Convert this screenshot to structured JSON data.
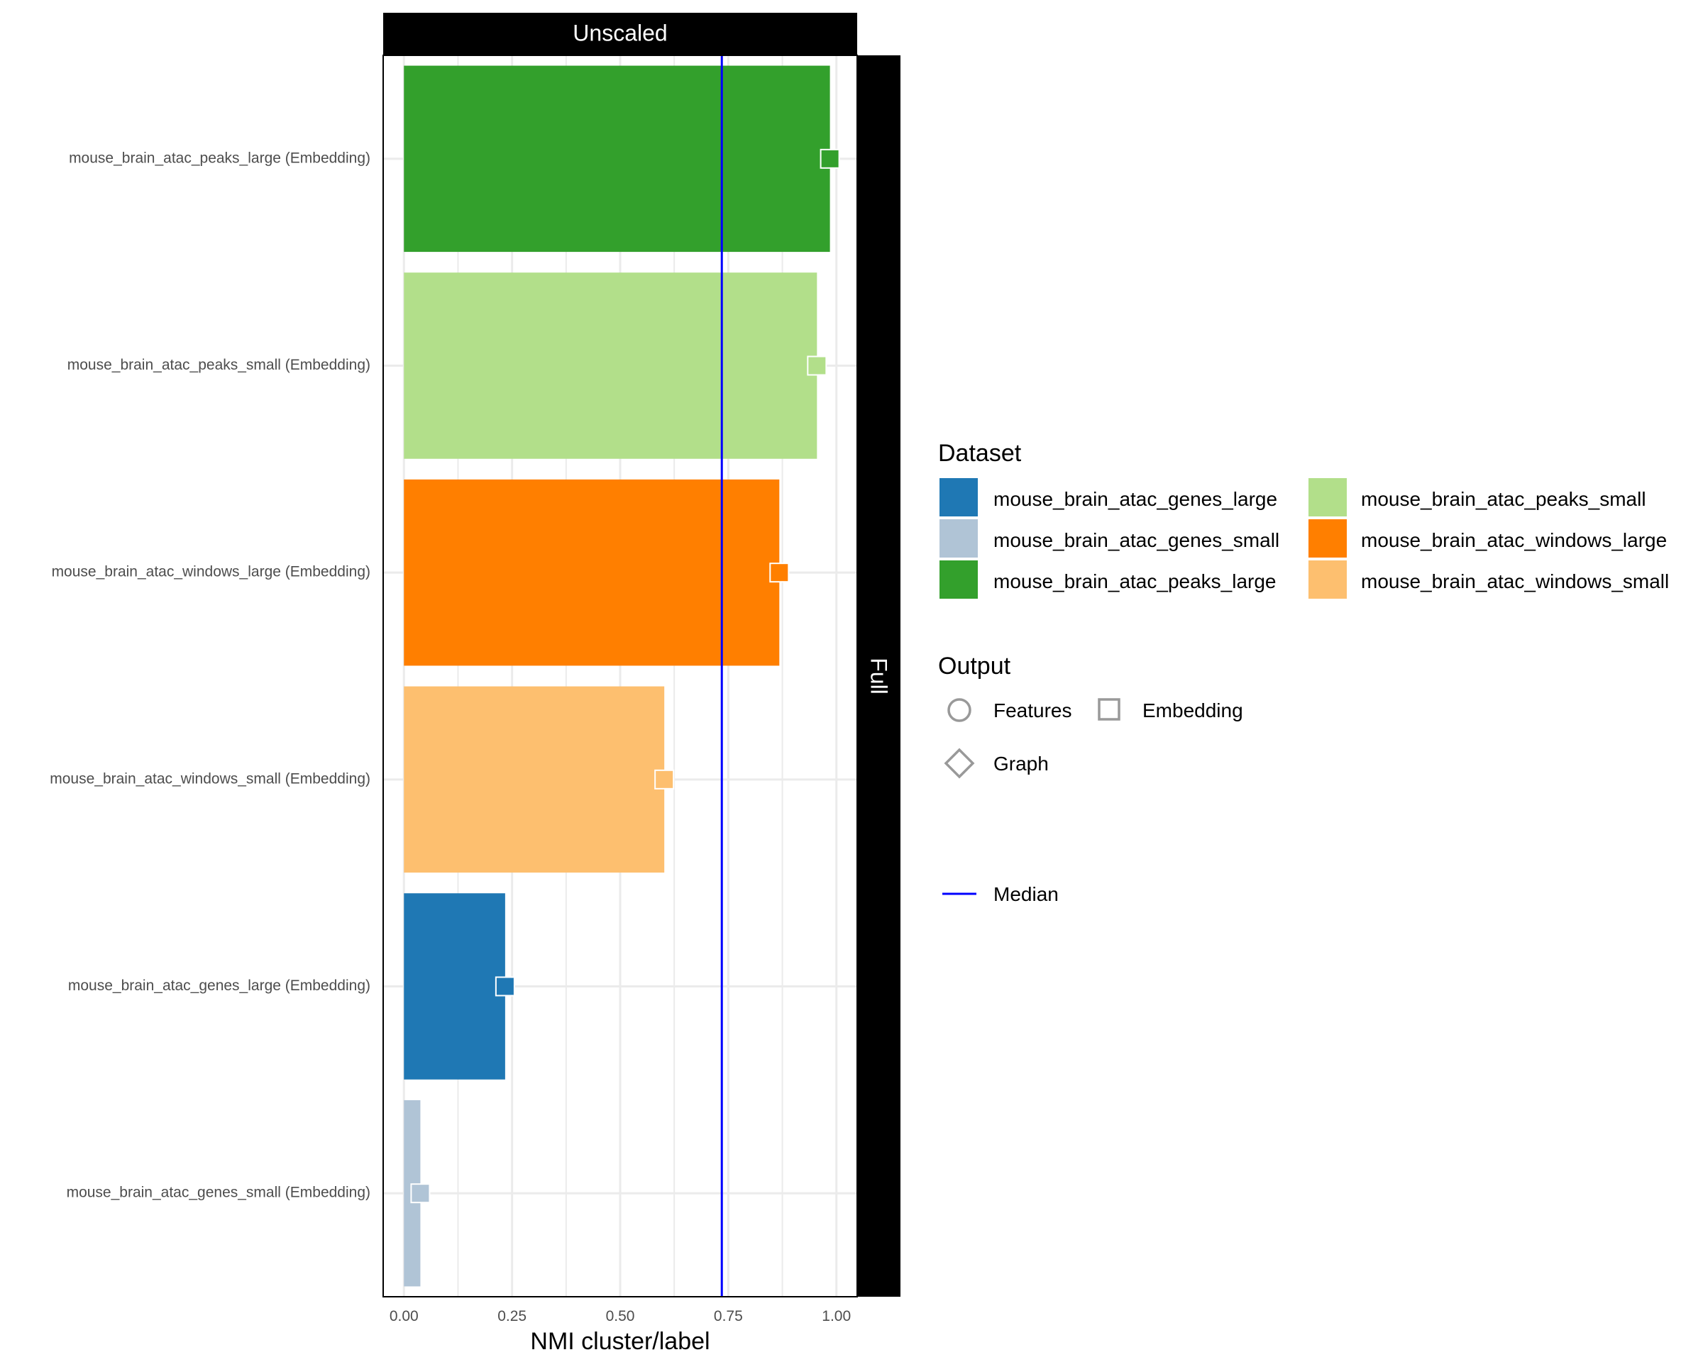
{
  "chart_data": {
    "type": "bar",
    "orientation": "horizontal",
    "facet_top": "Unscaled",
    "facet_right": "Full",
    "xlabel": "NMI cluster/label",
    "xlim": [
      -0.048,
      1.048
    ],
    "x_ticks": [
      0.0,
      0.25,
      0.5,
      0.75,
      1.0
    ],
    "x_tick_labels": [
      "0.00",
      "0.25",
      "0.50",
      "0.75",
      "1.00"
    ],
    "grid": true,
    "median": 0.735,
    "categories": [
      "mouse_brain_atac_peaks_large (Embedding)",
      "mouse_brain_atac_peaks_small (Embedding)",
      "mouse_brain_atac_windows_large (Embedding)",
      "mouse_brain_atac_windows_small (Embedding)",
      "mouse_brain_atac_genes_large (Embedding)",
      "mouse_brain_atac_genes_small (Embedding)"
    ],
    "values": [
      0.985,
      0.955,
      0.868,
      0.602,
      0.234,
      0.038
    ],
    "bar_colors": [
      "#33a02c",
      "#b2df8a",
      "#ff7f00",
      "#fdbf6f",
      "#1f78b4",
      "#b0c4d6"
    ],
    "marker_shape": "square",
    "legend_position": "right",
    "legend": {
      "dataset_title": "Dataset",
      "datasets": [
        {
          "label": "mouse_brain_atac_genes_large",
          "color": "#1f78b4"
        },
        {
          "label": "mouse_brain_atac_genes_small",
          "color": "#b0c4d6"
        },
        {
          "label": "mouse_brain_atac_peaks_large",
          "color": "#33a02c"
        },
        {
          "label": "mouse_brain_atac_peaks_small",
          "color": "#b2df8a"
        },
        {
          "label": "mouse_brain_atac_windows_large",
          "color": "#ff7f00"
        },
        {
          "label": "mouse_brain_atac_windows_small",
          "color": "#fdbf6f"
        }
      ],
      "output_title": "Output",
      "outputs": [
        {
          "label": "Features",
          "shape": "circle"
        },
        {
          "label": "Embedding",
          "shape": "square"
        },
        {
          "label": "Graph",
          "shape": "diamond"
        }
      ],
      "median_label": "Median",
      "median_color": "#0000ff"
    }
  }
}
